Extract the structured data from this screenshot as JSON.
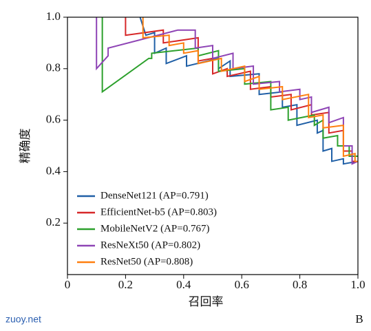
{
  "chart_data": {
    "type": "line",
    "x_label": "召回率",
    "y_label": "精确度",
    "annotations": [
      "zuoy.net",
      "B"
    ],
    "xlim": [
      0,
      1
    ],
    "ylim": [
      0,
      1
    ],
    "xticks": [
      0,
      0.2,
      0.4,
      0.6,
      0.8,
      {
        "value": 1,
        "label": "1.0"
      }
    ],
    "yticks": [
      0.2,
      0.4,
      0.6,
      0.8,
      {
        "value": 1,
        "label": "1.0"
      }
    ],
    "legend": "lower-left",
    "series": [
      {
        "name": "DenseNet121 (AP=0.791)",
        "color": "#1f5fa6",
        "x": [
          0.25,
          0.27,
          0.3,
          0.3,
          0.34,
          0.34,
          0.41,
          0.41,
          0.52,
          0.52,
          0.56,
          0.56,
          0.66,
          0.66,
          0.74,
          0.74,
          0.79,
          0.79,
          0.86,
          0.86,
          0.88,
          0.88,
          0.91,
          0.91,
          0.95,
          0.95,
          1.0
        ],
        "values": [
          1.0,
          0.93,
          0.94,
          0.86,
          0.88,
          0.82,
          0.85,
          0.81,
          0.84,
          0.8,
          0.83,
          0.77,
          0.78,
          0.7,
          0.71,
          0.65,
          0.66,
          0.58,
          0.6,
          0.55,
          0.56,
          0.48,
          0.49,
          0.44,
          0.45,
          0.43,
          0.44
        ]
      },
      {
        "name": "EfficientNet-b5 (AP=0.803)",
        "color": "#d62728",
        "x": [
          0.2,
          0.2,
          0.33,
          0.33,
          0.45,
          0.45,
          0.5,
          0.5,
          0.55,
          0.55,
          0.63,
          0.63,
          0.7,
          0.7,
          0.77,
          0.77,
          0.84,
          0.84,
          0.9,
          0.9,
          0.95,
          0.95,
          0.98,
          0.98,
          1.0
        ],
        "values": [
          1.0,
          0.93,
          0.95,
          0.9,
          0.92,
          0.83,
          0.84,
          0.78,
          0.8,
          0.77,
          0.79,
          0.72,
          0.73,
          0.69,
          0.7,
          0.64,
          0.66,
          0.62,
          0.63,
          0.55,
          0.56,
          0.48,
          0.48,
          0.44,
          0.44
        ]
      },
      {
        "name": "MobileNetV2 (AP=0.767)",
        "color": "#2ca02c",
        "x": [
          0.12,
          0.12,
          0.28,
          0.29,
          0.29,
          0.45,
          0.45,
          0.52,
          0.52,
          0.61,
          0.61,
          0.7,
          0.7,
          0.76,
          0.76,
          0.85,
          0.85,
          0.88,
          0.88,
          0.93,
          0.93,
          0.97,
          0.97,
          1.0
        ],
        "values": [
          1.0,
          0.71,
          0.84,
          0.84,
          0.86,
          0.88,
          0.85,
          0.87,
          0.79,
          0.8,
          0.74,
          0.75,
          0.64,
          0.65,
          0.6,
          0.62,
          0.58,
          0.6,
          0.53,
          0.54,
          0.5,
          0.5,
          0.46,
          0.46
        ]
      },
      {
        "name": "ResNeXt50 (AP=0.802)",
        "color": "#8e44b5",
        "x": [
          0.1,
          0.1,
          0.14,
          0.14,
          0.38,
          0.44,
          0.44,
          0.5,
          0.5,
          0.57,
          0.57,
          0.64,
          0.64,
          0.73,
          0.73,
          0.8,
          0.8,
          0.84,
          0.84,
          0.9,
          0.9,
          0.95,
          0.95,
          0.98,
          0.98,
          1.0
        ],
        "values": [
          1.0,
          0.8,
          0.85,
          0.88,
          0.95,
          0.95,
          0.88,
          0.89,
          0.84,
          0.86,
          0.8,
          0.81,
          0.74,
          0.75,
          0.71,
          0.72,
          0.68,
          0.69,
          0.63,
          0.65,
          0.59,
          0.61,
          0.5,
          0.5,
          0.43,
          0.44
        ]
      },
      {
        "name": "ResNet50 (AP=0.808)",
        "color": "#ff7f0e",
        "x": [
          0.26,
          0.26,
          0.35,
          0.35,
          0.4,
          0.4,
          0.45,
          0.45,
          0.53,
          0.53,
          0.61,
          0.61,
          0.66,
          0.66,
          0.74,
          0.74,
          0.83,
          0.83,
          0.88,
          0.88,
          0.95,
          0.95,
          0.99,
          0.99,
          1.0
        ],
        "values": [
          1.0,
          0.92,
          0.93,
          0.89,
          0.9,
          0.86,
          0.87,
          0.82,
          0.84,
          0.79,
          0.81,
          0.75,
          0.77,
          0.72,
          0.73,
          0.68,
          0.7,
          0.61,
          0.62,
          0.57,
          0.58,
          0.46,
          0.47,
          0.44,
          0.44
        ]
      }
    ]
  }
}
